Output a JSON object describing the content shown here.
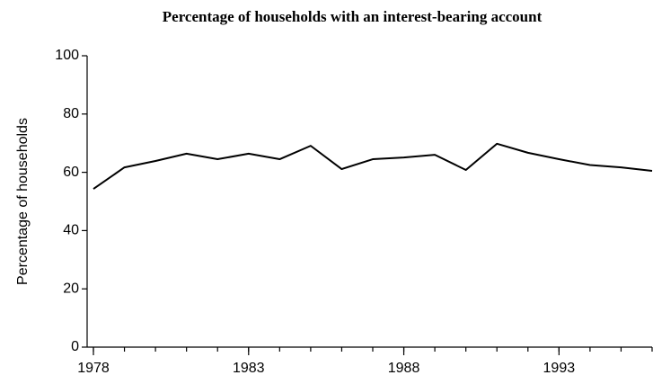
{
  "chart_data": {
    "type": "line",
    "title": "Percentage of households with an interest-bearing account",
    "y_label": "Percentage of households",
    "x": [
      1978,
      1979,
      1980,
      1981,
      1982,
      1983,
      1984,
      1985,
      1986,
      1987,
      1988,
      1989,
      1990,
      1991,
      1992,
      1993,
      1994,
      1995,
      1996
    ],
    "values": [
      54.3,
      61.7,
      63.9,
      66.4,
      64.5,
      66.4,
      64.5,
      69.1,
      61.1,
      64.5,
      65.1,
      66.0,
      60.8,
      69.8,
      66.7,
      64.5,
      62.5,
      61.7,
      60.5
    ],
    "color": "#000000",
    "xlim": [
      1978,
      1996
    ],
    "xticks": [
      1978,
      1983,
      1988,
      1993
    ],
    "ylim": [
      0,
      100
    ],
    "yticks": [
      0,
      20,
      40,
      60,
      80,
      100
    ],
    "grid": false
  }
}
